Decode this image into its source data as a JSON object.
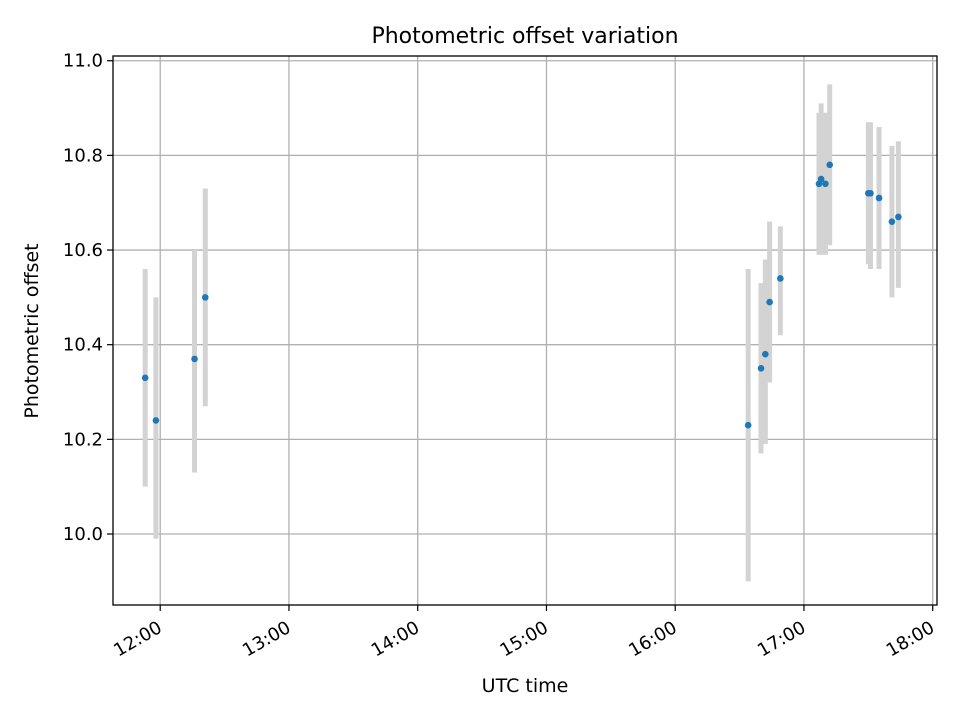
{
  "chart_data": {
    "type": "scatter",
    "title": "Photometric offset variation",
    "xlabel": "UTC time",
    "ylabel": "Photometric offset",
    "x_axis": {
      "type": "time",
      "ticks": [
        "12:00",
        "13:00",
        "14:00",
        "15:00",
        "16:00",
        "17:00",
        "18:00"
      ],
      "lim": [
        "11:38",
        "18:02"
      ]
    },
    "y_axis": {
      "ticks": [
        "10.0",
        "10.2",
        "10.4",
        "10.6",
        "10.8",
        "11.0"
      ],
      "lim": [
        9.85,
        11.01
      ]
    },
    "grid": true,
    "colors": {
      "points": "#1f77b4",
      "errorbars": "#d3d3d3",
      "grid": "#b0b0b0"
    },
    "points": [
      {
        "x": "11:53",
        "y": 10.33,
        "ylow": 10.1,
        "yhigh": 10.56
      },
      {
        "x": "11:58",
        "y": 10.24,
        "ylow": 9.99,
        "yhigh": 10.5
      },
      {
        "x": "12:16",
        "y": 10.37,
        "ylow": 10.13,
        "yhigh": 10.6
      },
      {
        "x": "12:21",
        "y": 10.5,
        "ylow": 10.27,
        "yhigh": 10.73
      },
      {
        "x": "16:34",
        "y": 10.23,
        "ylow": 9.9,
        "yhigh": 10.56
      },
      {
        "x": "16:40",
        "y": 10.35,
        "ylow": 10.17,
        "yhigh": 10.53
      },
      {
        "x": "16:42",
        "y": 10.38,
        "ylow": 10.19,
        "yhigh": 10.58
      },
      {
        "x": "16:44",
        "y": 10.49,
        "ylow": 10.32,
        "yhigh": 10.66
      },
      {
        "x": "16:49",
        "y": 10.54,
        "ylow": 10.42,
        "yhigh": 10.65
      },
      {
        "x": "17:07",
        "y": 10.74,
        "ylow": 10.59,
        "yhigh": 10.89
      },
      {
        "x": "17:08",
        "y": 10.75,
        "ylow": 10.59,
        "yhigh": 10.91
      },
      {
        "x": "17:10",
        "y": 10.74,
        "ylow": 10.59,
        "yhigh": 10.89
      },
      {
        "x": "17:12",
        "y": 10.78,
        "ylow": 10.61,
        "yhigh": 10.95
      },
      {
        "x": "17:30",
        "y": 10.72,
        "ylow": 10.57,
        "yhigh": 10.87
      },
      {
        "x": "17:31",
        "y": 10.72,
        "ylow": 10.56,
        "yhigh": 10.87
      },
      {
        "x": "17:35",
        "y": 10.71,
        "ylow": 10.56,
        "yhigh": 10.86
      },
      {
        "x": "17:41",
        "y": 10.66,
        "ylow": 10.5,
        "yhigh": 10.82
      },
      {
        "x": "17:44",
        "y": 10.67,
        "ylow": 10.52,
        "yhigh": 10.83
      }
    ]
  }
}
